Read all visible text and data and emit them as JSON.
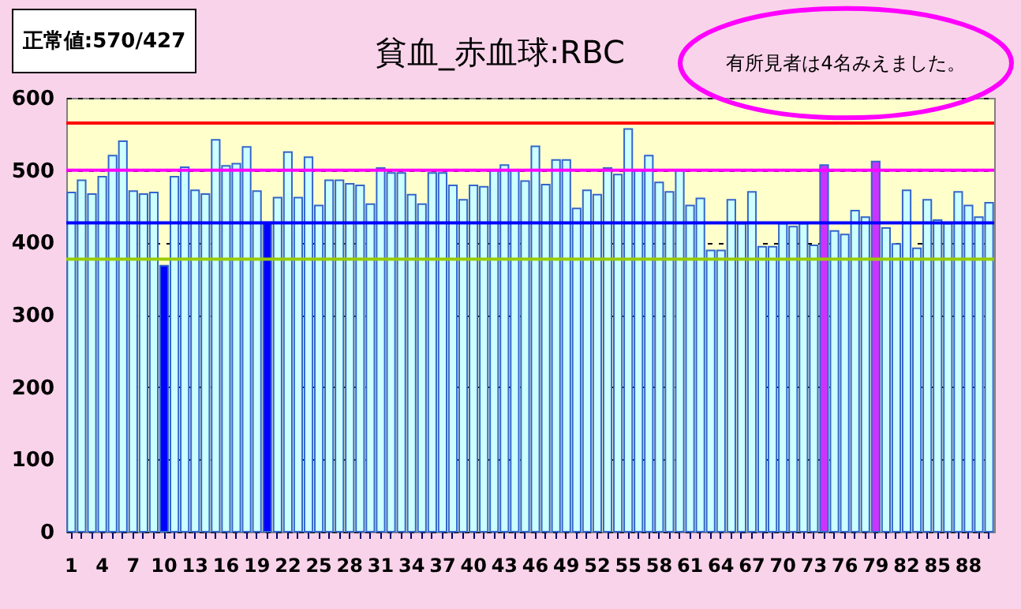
{
  "chart_data": {
    "type": "bar",
    "title": "貧血_赤血球:RBC",
    "categories": [
      "1",
      null,
      null,
      "4",
      null,
      null,
      "7",
      null,
      null,
      "10",
      null,
      null,
      "13",
      null,
      null,
      "16",
      null,
      null,
      "19",
      null,
      null,
      "22",
      null,
      null,
      "25",
      null,
      null,
      "28",
      null,
      null,
      "31",
      null,
      null,
      "34",
      null,
      null,
      "37",
      null,
      null,
      "40",
      null,
      null,
      "43",
      null,
      null,
      "46",
      null,
      null,
      "49",
      null,
      null,
      "52",
      null,
      null,
      "55",
      null,
      null,
      "58",
      null,
      null,
      "61",
      null,
      null,
      "64",
      null,
      null,
      "67",
      null,
      null,
      "70",
      null,
      null,
      "73",
      null,
      null,
      "76",
      null,
      null,
      "79",
      null,
      null,
      "82",
      null,
      null,
      "85",
      null,
      null,
      "88",
      null,
      null
    ],
    "values": [
      469,
      486,
      467,
      491,
      520,
      540,
      471,
      467,
      469,
      368,
      491,
      504,
      472,
      467,
      542,
      506,
      509,
      532,
      471,
      428,
      462,
      525,
      462,
      518,
      451,
      486,
      486,
      481,
      479,
      453,
      503,
      496,
      496,
      466,
      453,
      496,
      496,
      479,
      459,
      479,
      477,
      499,
      507,
      499,
      485,
      533,
      480,
      514,
      514,
      447,
      472,
      466,
      503,
      494,
      557,
      499,
      520,
      483,
      470,
      499,
      451,
      461,
      389,
      389,
      459,
      426,
      470,
      394,
      394,
      426,
      422,
      426,
      396,
      507,
      416,
      411,
      444,
      435,
      512,
      420,
      398,
      472,
      392,
      459,
      431,
      426,
      470,
      451,
      435,
      455
    ],
    "colors": [
      "#ccffff",
      "#ccffff",
      "#ccffff",
      "#ccffff",
      "#ccffff",
      "#ccffff",
      "#ccffff",
      "#ccffff",
      "#ccffff",
      "#0000ff",
      "#ccffff",
      "#ccffff",
      "#ccffff",
      "#ccffff",
      "#ccffff",
      "#ccffff",
      "#ccffff",
      "#ccffff",
      "#ccffff",
      "#0000ff",
      "#ccffff",
      "#ccffff",
      "#ccffff",
      "#ccffff",
      "#ccffff",
      "#ccffff",
      "#ccffff",
      "#ccffff",
      "#ccffff",
      "#ccffff",
      "#ccffff",
      "#ccffff",
      "#ccffff",
      "#ccffff",
      "#ccffff",
      "#ccffff",
      "#ccffff",
      "#ccffff",
      "#ccffff",
      "#ccffff",
      "#ccffff",
      "#ccffff",
      "#ccffff",
      "#ccffff",
      "#ccffff",
      "#ccffff",
      "#ccffff",
      "#ccffff",
      "#ccffff",
      "#ccffff",
      "#ccffff",
      "#ccffff",
      "#ccffff",
      "#ccffff",
      "#ccffff",
      "#ccffff",
      "#ccffff",
      "#ccffff",
      "#ccffff",
      "#ccffff",
      "#ccffff",
      "#ccffff",
      "#ccffff",
      "#ccffff",
      "#ccffff",
      "#ccffff",
      "#ccffff",
      "#ccffff",
      "#ccffff",
      "#ccffff",
      "#ccffff",
      "#ccffff",
      "#ccffff",
      "#cc33ff",
      "#ccffff",
      "#ccffff",
      "#ccffff",
      "#ccffff",
      "#cc33ff",
      "#ccffff",
      "#ccffff",
      "#ccffff",
      "#ccffff",
      "#ccffff",
      "#ccffff",
      "#ccffff",
      "#ccffff",
      "#ccffff",
      "#ccffff",
      "#ccffff"
    ],
    "ylim": [
      0,
      600
    ],
    "yticks": [
      0,
      100,
      200,
      300,
      400,
      500,
      600
    ],
    "grid": "y",
    "ref_lines": [
      {
        "axis": "y",
        "value": 565,
        "color": "#ff0000"
      },
      {
        "axis": "y",
        "value": 500,
        "color": "#ff00ff"
      },
      {
        "axis": "y",
        "value": 427,
        "color": "#0000ff"
      },
      {
        "axis": "y",
        "value": 377,
        "color": "#99cc00"
      }
    ],
    "annotations": [
      "正常値:570/427",
      "有所見者は4名みえました。"
    ]
  }
}
